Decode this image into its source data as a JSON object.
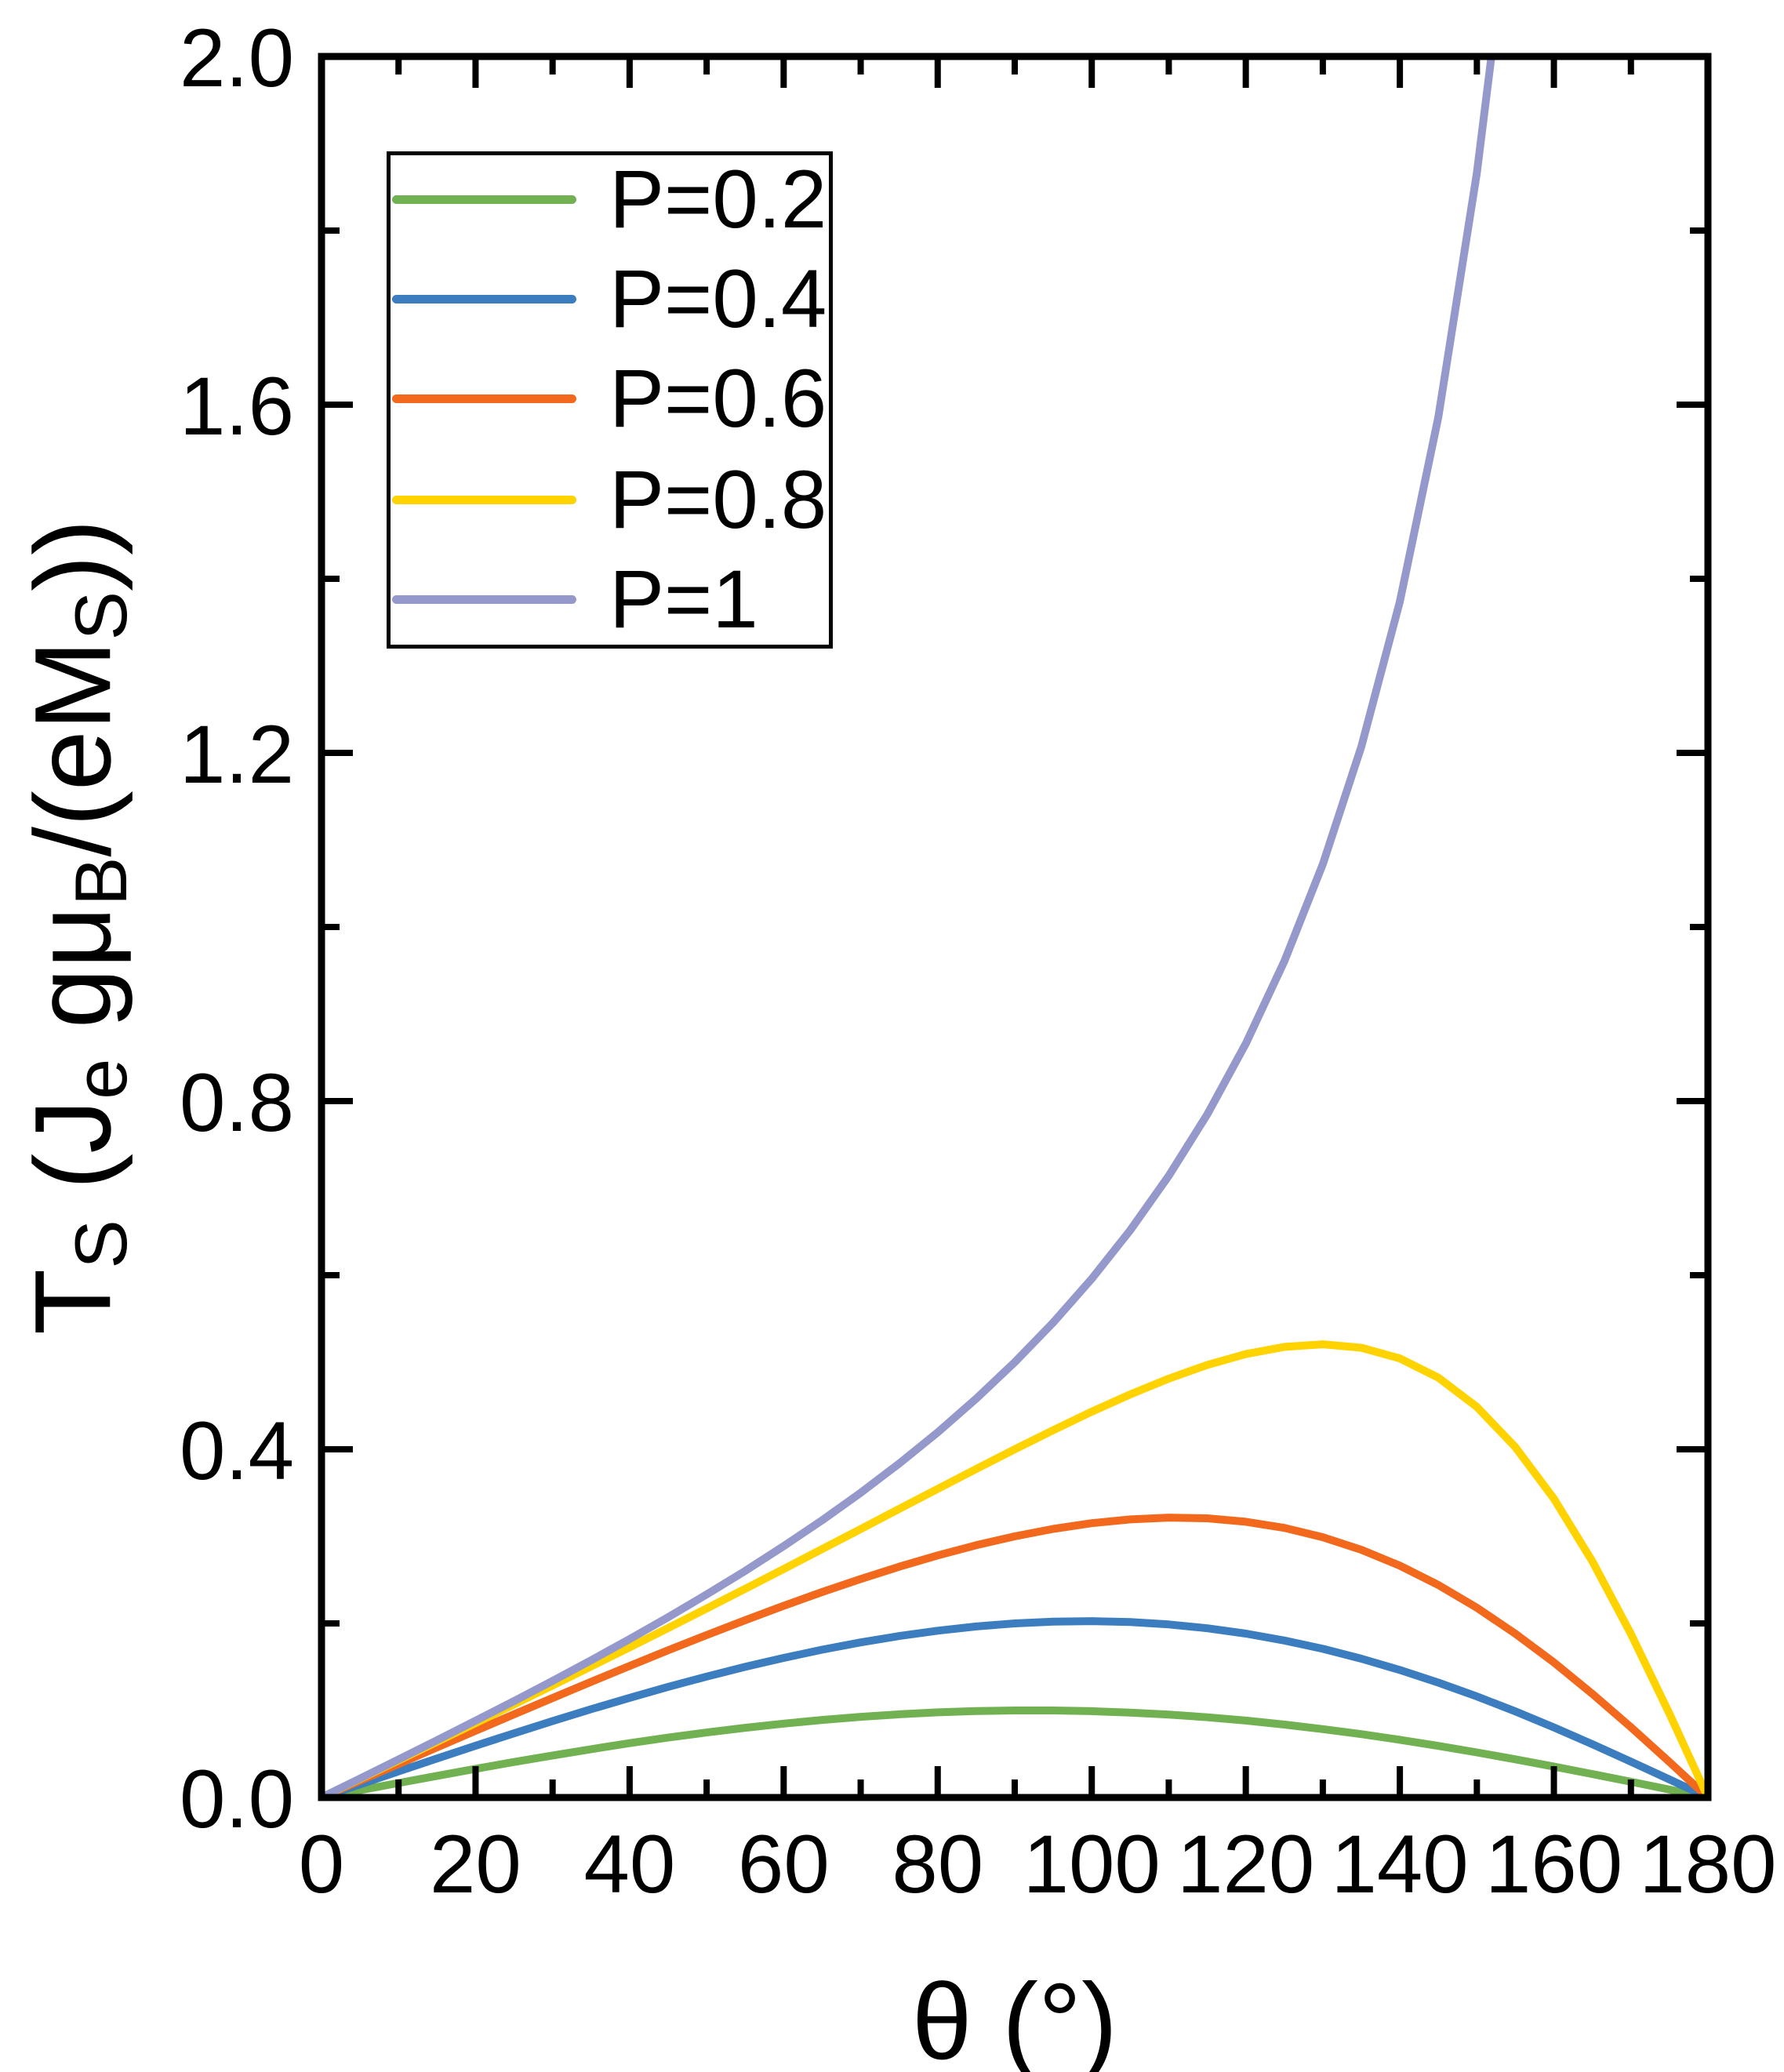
{
  "figure": {
    "background": "#ffffff",
    "axis_color": "#000000"
  },
  "chart_data": {
    "type": "line",
    "title": "",
    "xlabel": "θ (°)",
    "ylabel": "T_S (J_e gμ_B/(eM_S))",
    "xlabel_parts": [
      [
        "θ (°)",
        false
      ]
    ],
    "ylabel_parts": [
      [
        "T",
        false
      ],
      [
        "S",
        true
      ],
      [
        " (J",
        false
      ],
      [
        "e",
        true
      ],
      [
        " gμ",
        false
      ],
      [
        "B",
        true
      ],
      [
        "/(eM",
        false
      ],
      [
        "S",
        true
      ],
      [
        "))",
        false
      ]
    ],
    "xlim": [
      0,
      180
    ],
    "ylim": [
      0,
      2
    ],
    "grid": false,
    "legend_position": "upper-left",
    "x_major_ticks": [
      0,
      20,
      40,
      60,
      80,
      100,
      120,
      140,
      160,
      180
    ],
    "x_minor_ticks": [
      10,
      30,
      50,
      70,
      90,
      110,
      130,
      150,
      170
    ],
    "x_tick_labels": [
      "0",
      "20",
      "40",
      "60",
      "80",
      "100",
      "120",
      "140",
      "160",
      "180"
    ],
    "y_major_ticks": [
      0,
      0.4,
      0.8,
      1.2,
      1.6,
      2.0
    ],
    "y_minor_ticks": [
      0.2,
      0.6,
      1.0,
      1.4,
      1.8
    ],
    "y_tick_labels": [
      "0.0",
      "0.4",
      "0.8",
      "1.2",
      "1.6",
      "2.0"
    ],
    "series": [
      {
        "label": "P=0.2",
        "color": "#71B152",
        "x": [
          0,
          5,
          10,
          15,
          20,
          25,
          30,
          35,
          40,
          45,
          50,
          55,
          60,
          65,
          70,
          75,
          80,
          85,
          90,
          95,
          100,
          105,
          110,
          115,
          120,
          125,
          130,
          135,
          140,
          145,
          150,
          155,
          160,
          165,
          170,
          175,
          180
        ],
        "y": [
          0,
          0.0084,
          0.0167,
          0.0249,
          0.033,
          0.0408,
          0.0483,
          0.0555,
          0.0624,
          0.0688,
          0.0747,
          0.0801,
          0.0849,
          0.0891,
          0.0927,
          0.0956,
          0.0978,
          0.0993,
          0.1,
          0.1,
          0.0992,
          0.0976,
          0.0953,
          0.0922,
          0.0884,
          0.0838,
          0.0786,
          0.0728,
          0.0663,
          0.0593,
          0.0518,
          0.0439,
          0.0355,
          0.0269,
          0.0181,
          0.0091,
          0
        ]
      },
      {
        "label": "P=0.4",
        "color": "#3B7DBE",
        "x": [
          0,
          5,
          10,
          15,
          20,
          25,
          30,
          35,
          40,
          45,
          50,
          55,
          60,
          65,
          70,
          75,
          80,
          85,
          90,
          95,
          100,
          105,
          110,
          115,
          120,
          125,
          130,
          135,
          140,
          145,
          150,
          155,
          160,
          165,
          170,
          175,
          180
        ],
        "y": [
          0,
          0.015,
          0.03,
          0.0448,
          0.0595,
          0.0738,
          0.0878,
          0.1014,
          0.1145,
          0.1271,
          0.1389,
          0.1501,
          0.1604,
          0.1698,
          0.1782,
          0.1855,
          0.1916,
          0.1965,
          0.2,
          0.2021,
          0.2026,
          0.2015,
          0.1988,
          0.1944,
          0.1883,
          0.1804,
          0.1708,
          0.1595,
          0.1465,
          0.132,
          0.1161,
          0.0989,
          0.0805,
          0.0612,
          0.0412,
          0.0208,
          0
        ]
      },
      {
        "label": "P=0.6",
        "color": "#F2681C",
        "x": [
          0,
          5,
          10,
          15,
          20,
          25,
          30,
          35,
          40,
          45,
          50,
          55,
          60,
          65,
          70,
          75,
          80,
          85,
          90,
          95,
          100,
          105,
          110,
          115,
          120,
          125,
          130,
          135,
          140,
          145,
          150,
          155,
          160,
          165,
          170,
          175,
          180
        ],
        "y": [
          0,
          0.0193,
          0.0384,
          0.0576,
          0.0767,
          0.0956,
          0.1143,
          0.1329,
          0.1512,
          0.1691,
          0.1866,
          0.2037,
          0.2202,
          0.236,
          0.251,
          0.2651,
          0.2781,
          0.2898,
          0.3,
          0.3086,
          0.3151,
          0.3195,
          0.3215,
          0.3207,
          0.3168,
          0.3097,
          0.299,
          0.2846,
          0.2663,
          0.2441,
          0.218,
          0.1882,
          0.1551,
          0.119,
          0.0807,
          0.0408,
          0
        ]
      },
      {
        "label": "P=0.8",
        "color": "#FFD300",
        "x": [
          0,
          5,
          10,
          15,
          20,
          25,
          30,
          35,
          40,
          45,
          50,
          55,
          60,
          65,
          70,
          75,
          80,
          85,
          90,
          95,
          100,
          105,
          110,
          115,
          120,
          125,
          130,
          135,
          140,
          145,
          150,
          155,
          160,
          165,
          170,
          175,
          180
        ],
        "y": [
          0,
          0.0213,
          0.0426,
          0.064,
          0.0854,
          0.107,
          0.1287,
          0.1505,
          0.1725,
          0.1947,
          0.2171,
          0.2397,
          0.2624,
          0.2854,
          0.3084,
          0.3315,
          0.3545,
          0.3774,
          0.4,
          0.422,
          0.4432,
          0.4631,
          0.4812,
          0.4969,
          0.5094,
          0.5177,
          0.5206,
          0.5167,
          0.5044,
          0.4823,
          0.4487,
          0.4025,
          0.3432,
          0.2712,
          0.1879,
          0.0963,
          0
        ]
      },
      {
        "label": "P=1",
        "color": "#9598CB",
        "x": [
          0,
          5,
          10,
          15,
          20,
          25,
          30,
          35,
          40,
          45,
          50,
          55,
          60,
          65,
          70,
          75,
          80,
          85,
          90,
          95,
          100,
          105,
          110,
          115,
          120,
          125,
          130,
          135,
          140,
          145,
          150,
          152.5
        ],
        "y": [
          0,
          0.0218,
          0.0437,
          0.0658,
          0.0882,
          0.1108,
          0.134,
          0.1577,
          0.182,
          0.2071,
          0.2332,
          0.2603,
          0.2887,
          0.3185,
          0.3501,
          0.3837,
          0.4195,
          0.4582,
          0.5,
          0.5457,
          0.5959,
          0.6516,
          0.7141,
          0.7848,
          0.866,
          0.9605,
          1.0722,
          1.2071,
          1.3737,
          1.5858,
          1.866,
          2.0434
        ]
      }
    ]
  }
}
